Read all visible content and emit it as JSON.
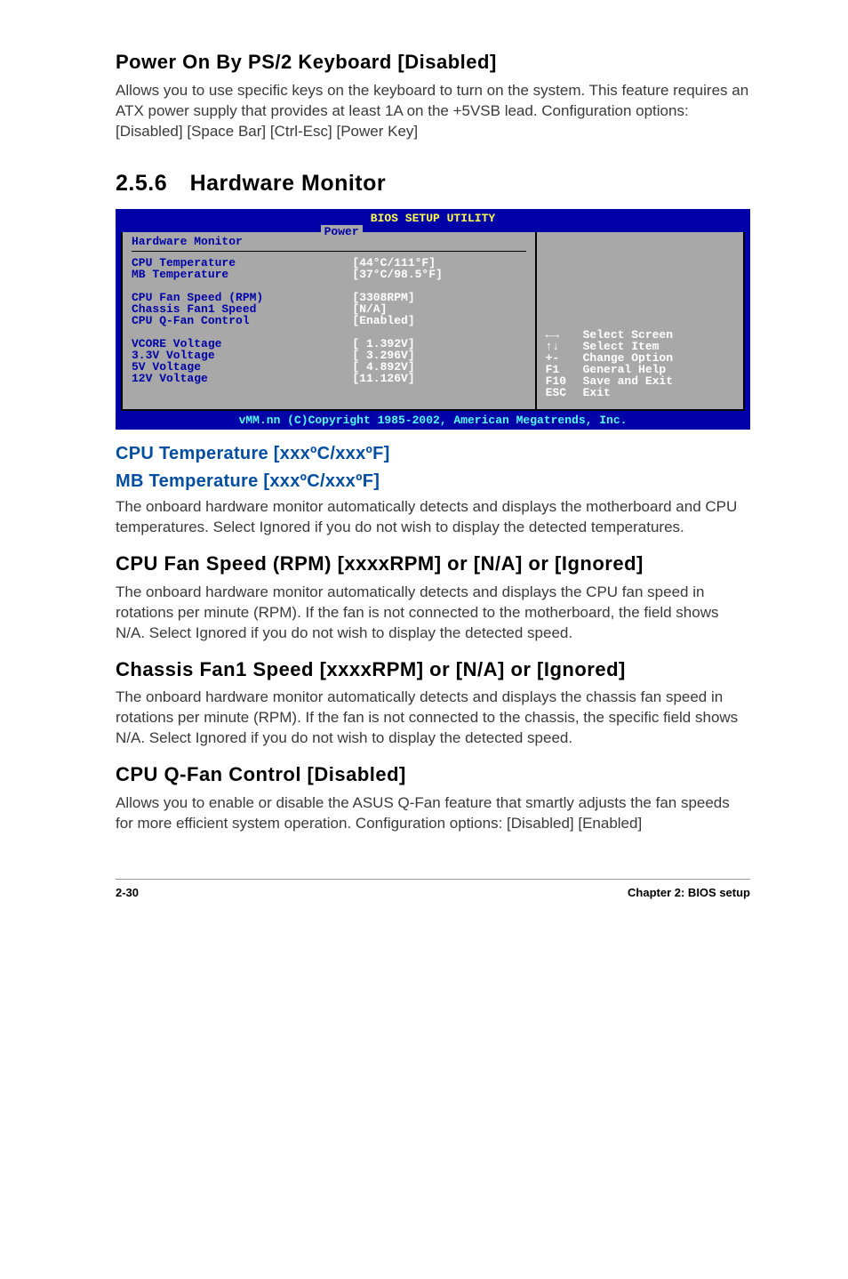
{
  "heading1": {
    "title": "Power On By PS/2 Keyboard [Disabled]",
    "body": "Allows you to use specific keys on the keyboard to turn on the system. This feature requires an ATX power supply that provides at least 1A on the +5VSB lead. Configuration options: [Disabled] [Space Bar] [Ctrl-Esc] [Power Key]"
  },
  "section256": {
    "title": "2.5.6 Hardware Monitor"
  },
  "bios": {
    "title": "BIOS SETUP UTILITY",
    "tab": "Power",
    "group_title": "Hardware Monitor",
    "rows": [
      {
        "k": "CPU Temperature",
        "v": "[44°C/111°F]"
      },
      {
        "k": "MB Temperature",
        "v": "[37°C/98.5°F]"
      },
      {
        "k": "",
        "v": ""
      },
      {
        "k": "CPU Fan Speed (RPM)",
        "v": "[3308RPM]"
      },
      {
        "k": "Chassis Fan1 Speed",
        "v": "[N/A]"
      },
      {
        "k": "CPU Q-Fan Control",
        "v": "[Enabled]"
      },
      {
        "k": "",
        "v": ""
      },
      {
        "k": "VCORE Voltage",
        "v": "[ 1.392V]"
      },
      {
        "k": "3.3V Voltage",
        "v": "[ 3.296V]"
      },
      {
        "k": "5V Voltage",
        "v": "[ 4.892V]"
      },
      {
        "k": "12V Voltage",
        "v": "[11.126V]"
      }
    ],
    "help": [
      {
        "key": "←→",
        "desc": "Select Screen"
      },
      {
        "key": "↑↓",
        "desc": "Select Item"
      },
      {
        "key": "+-",
        "desc": "Change Option"
      },
      {
        "key": "F1",
        "desc": "General Help"
      },
      {
        "key": "F10",
        "desc": "Save and Exit"
      },
      {
        "key": "ESC",
        "desc": "Exit"
      }
    ],
    "footer": "vMM.nn (C)Copyright 1985-2002, American Megatrends, Inc."
  },
  "temp": {
    "h_cpu": "CPU Temperature [xxxºC/xxxºF]",
    "h_mb": "MB Temperature [xxxºC/xxxºF]",
    "body": "The onboard hardware monitor automatically detects and displays the motherboard and CPU temperatures. Select Ignored if you do not wish to display the detected temperatures."
  },
  "cpufan": {
    "h": "CPU Fan Speed (RPM) [xxxxRPM] or [N/A] or [Ignored]",
    "body": "The onboard hardware monitor automatically detects and displays the CPU fan speed in rotations per minute (RPM). If the fan is not connected to the motherboard, the field shows N/A. Select Ignored if you do not wish to display the detected speed."
  },
  "chassisfan": {
    "h": "Chassis Fan1 Speed [xxxxRPM] or [N/A] or [Ignored]",
    "body": "The onboard hardware monitor automatically detects and displays the chassis fan speed in rotations per minute (RPM). If the fan is not connected to the chassis, the specific field shows N/A. Select Ignored if you do not wish to display the detected speed."
  },
  "qfan": {
    "h": "CPU Q-Fan Control [Disabled]",
    "body": "Allows you to enable or disable the ASUS Q-Fan feature that smartly adjusts the fan speeds for more efficient system operation. Configuration options: [Disabled] [Enabled]"
  },
  "footer": {
    "left": "2-30",
    "right": "Chapter 2: BIOS setup"
  },
  "style": {
    "blue": "#034ea1",
    "bios_bg": "#0000a8",
    "bios_panel": "#a8a8a8",
    "bios_yellow": "#ffff4c",
    "bios_cyan": "#54fcfc"
  }
}
